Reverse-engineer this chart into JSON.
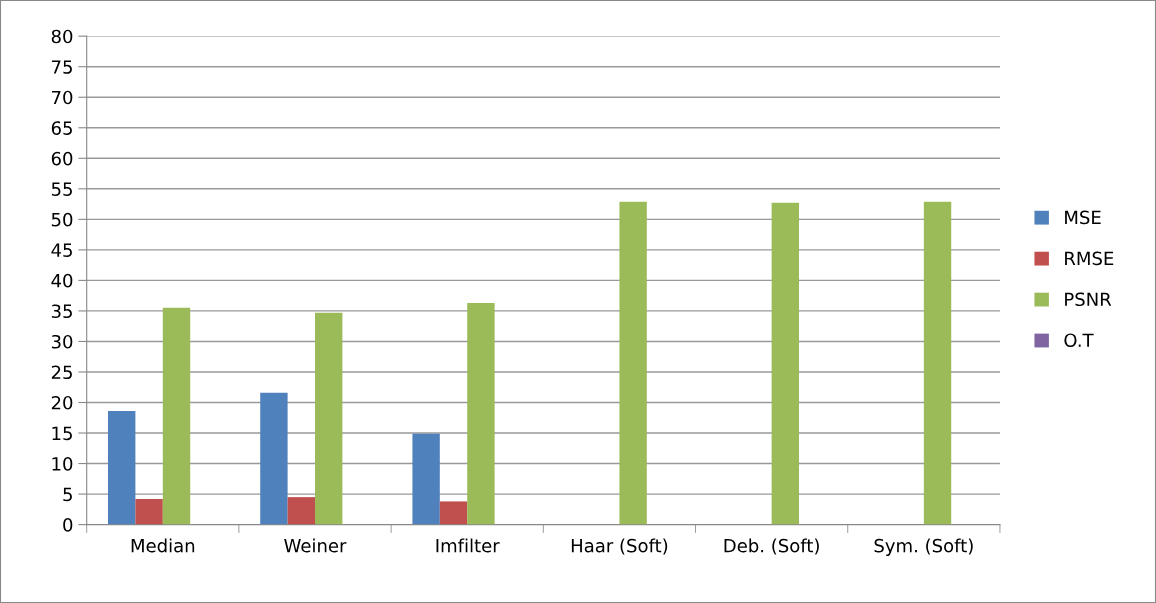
{
  "chart_data": {
    "type": "bar",
    "categories": [
      "Median",
      "Weiner",
      "Imfilter",
      "Haar (Soft)",
      "Deb. (Soft)",
      "Sym. (Soft)"
    ],
    "series": [
      {
        "name": "MSE",
        "color": "#4f81bd",
        "values": [
          18.6,
          21.6,
          14.9,
          null,
          null,
          null
        ]
      },
      {
        "name": "RMSE",
        "color": "#c0504d",
        "values": [
          4.2,
          4.5,
          3.8,
          null,
          null,
          null
        ]
      },
      {
        "name": "PSNR",
        "color": "#9bbb59",
        "values": [
          35.5,
          34.7,
          36.3,
          52.9,
          52.7,
          52.9
        ]
      },
      {
        "name": "O.T",
        "color": "#8064a2",
        "values": [
          null,
          null,
          null,
          null,
          null,
          null
        ]
      }
    ],
    "ylim": [
      0,
      80
    ],
    "yticks": [
      0,
      5,
      10,
      15,
      20,
      25,
      30,
      35,
      40,
      45,
      50,
      55,
      60,
      65,
      70,
      75,
      80
    ],
    "grid": "y",
    "legend": "right"
  }
}
